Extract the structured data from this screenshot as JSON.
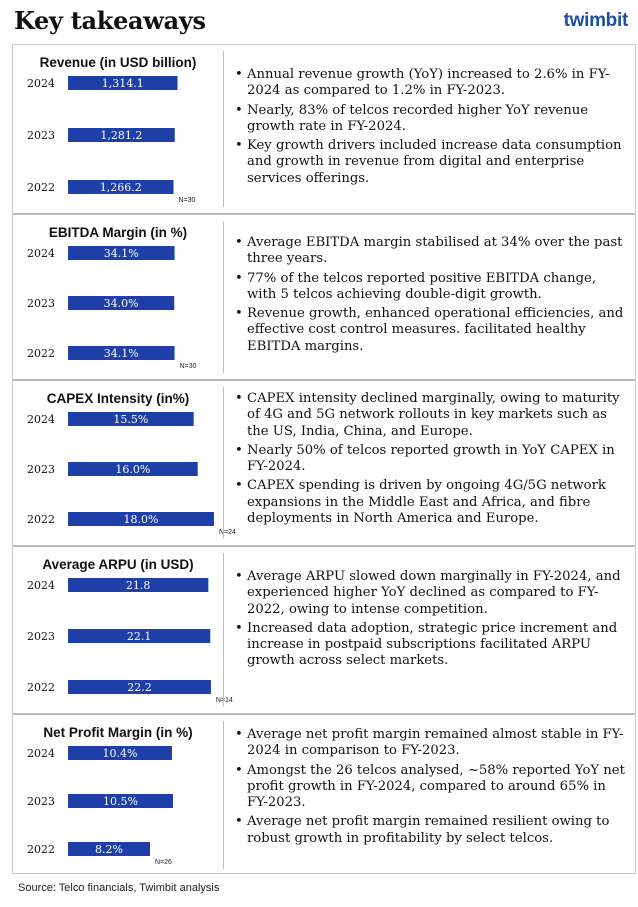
{
  "header": {
    "title": "Key takeaways",
    "brand": "twimbit"
  },
  "footer": {
    "source": "Source: Telco financials, Twimbit analysis"
  },
  "colors": {
    "bar": "#1f3fa8",
    "bar_text": "#ffffff",
    "brand": "#1d4fa3"
  },
  "chart_data": [
    {
      "type": "bar",
      "orientation": "horizontal",
      "title": "Revenue (in USD billion)",
      "categories": [
        "2024",
        "2023",
        "2022"
      ],
      "values": [
        1314.1,
        1281.2,
        1266.2
      ],
      "labels": [
        "1,314.1",
        "1,281.2",
        "1,266.2"
      ],
      "note": "N=30"
    },
    {
      "type": "bar",
      "orientation": "horizontal",
      "title": "EBITDA Margin (in %)",
      "categories": [
        "2024",
        "2023",
        "2022"
      ],
      "values": [
        34.1,
        34.0,
        34.1
      ],
      "labels": [
        "34.1%",
        "34.0%",
        "34.1%"
      ],
      "note": "N=30"
    },
    {
      "type": "bar",
      "orientation": "horizontal",
      "title": "CAPEX Intensity (in%)",
      "categories": [
        "2024",
        "2023",
        "2022"
      ],
      "values": [
        15.5,
        16.0,
        18.0
      ],
      "labels": [
        "15.5%",
        "16.0%",
        "18.0%"
      ],
      "note": "N=24"
    },
    {
      "type": "bar",
      "orientation": "horizontal",
      "title": "Average ARPU (in USD)",
      "categories": [
        "2024",
        "2023",
        "2022"
      ],
      "values": [
        21.8,
        22.1,
        22.2
      ],
      "labels": [
        "21.8",
        "22.1",
        "22.2"
      ],
      "note": "N=14"
    },
    {
      "type": "bar",
      "orientation": "horizontal",
      "title": "Net Profit Margin (in %)",
      "categories": [
        "2024",
        "2023",
        "2022"
      ],
      "values": [
        10.4,
        10.5,
        8.2
      ],
      "labels": [
        "10.4%",
        "10.5%",
        "8.2%"
      ],
      "note": "N=26"
    }
  ],
  "panels": [
    {
      "bullets": [
        "Annual revenue growth (YoY) increased to 2.6% in FY-2024 as compared to 1.2% in FY-2023.",
        "Nearly, 83% of telcos recorded higher YoY revenue growth rate in FY-2024.",
        "Key growth drivers included increase data consumption and growth in revenue from digital and enterprise services offerings."
      ]
    },
    {
      "bullets": [
        "Average EBITDA margin stabilised at 34% over the past three years.",
        "77% of the telcos reported positive EBITDA change, with 5 telcos achieving double-digit growth.",
        "Revenue growth, enhanced operational efficiencies, and effective cost control measures. facilitated healthy EBITDA margins."
      ]
    },
    {
      "bullets": [
        "CAPEX intensity declined marginally, owing to maturity of 4G and 5G network rollouts in key markets such as the US, India, China, and Europe.",
        "Nearly 50% of telcos reported growth in YoY CAPEX in FY-2024.",
        "CAPEX spending is driven by ongoing 4G/5G network expansions in the Middle East and Africa, and fibre deployments in North America and Europe."
      ]
    },
    {
      "bullets": [
        "Average ARPU slowed down marginally in FY-2024, and experienced higher YoY declined as compared to FY-2022, owing to intense competition.",
        "Increased data adoption, strategic price increment and increase in postpaid subscriptions facilitated ARPU growth across select markets."
      ]
    },
    {
      "bullets": [
        "Average net profit margin remained almost stable in FY-2024 in comparison to FY-2023.",
        "Amongst the 26 telcos analysed, ~58% reported YoY net profit growth in FY-2024, compared to around 65% in FY-2023.",
        "Average net profit margin remained resilient owing to robust growth in profitability by select telcos."
      ]
    }
  ]
}
